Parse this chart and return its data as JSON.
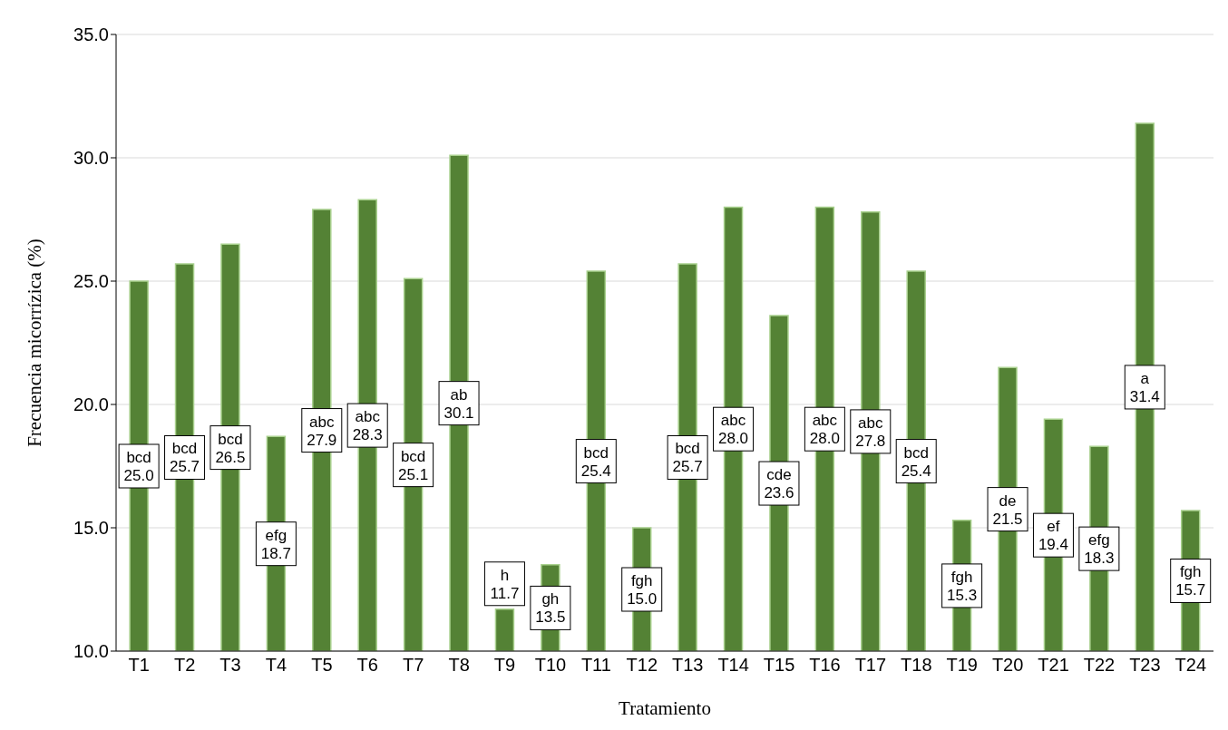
{
  "chart_data": {
    "type": "bar",
    "xlabel": "Tratamiento",
    "ylabel": "Frecuencia micorrízica (%)",
    "categories": [
      "T1",
      "T2",
      "T3",
      "T4",
      "T5",
      "T6",
      "T7",
      "T8",
      "T9",
      "T10",
      "T11",
      "T12",
      "T13",
      "T14",
      "T15",
      "T16",
      "T17",
      "T18",
      "T19",
      "T20",
      "T21",
      "T22",
      "T23",
      "T24"
    ],
    "values": [
      25.0,
      25.7,
      26.5,
      18.7,
      27.9,
      28.3,
      25.1,
      30.1,
      11.7,
      13.5,
      25.4,
      15.0,
      25.7,
      28.0,
      23.6,
      28.0,
      27.8,
      25.4,
      15.3,
      21.5,
      19.4,
      18.3,
      31.4,
      15.7
    ],
    "value_labels": [
      "bcd 25.0",
      "bcd 25.7",
      "bcd 26.5",
      "efg 18.7",
      "abc 27.9",
      "abc 28.3",
      "bcd 25.1",
      "ab 30.1",
      "h 11.7",
      "gh 13.5",
      "bcd 25.4",
      "fgh 15.0",
      "bcd 25.7",
      "abc 28.0",
      "cde 23.6",
      "abc 28.0",
      "abc 27.8",
      "bcd 25.4",
      "fgh 15.3",
      "de 21.5",
      "ef 19.4",
      "efg 18.3",
      "a 31.4",
      "fgh 15.7"
    ],
    "color": "#548235",
    "ylim": [
      10,
      35
    ],
    "yticks": [
      {
        "value": 10,
        "label": "10.0"
      },
      {
        "value": 15,
        "label": "15.0"
      },
      {
        "value": 20,
        "label": "20.0"
      },
      {
        "value": 25,
        "label": "25.0"
      },
      {
        "value": 30,
        "label": "30.0"
      },
      {
        "value": 35,
        "label": "35.0"
      }
    ],
    "grid": "y"
  }
}
